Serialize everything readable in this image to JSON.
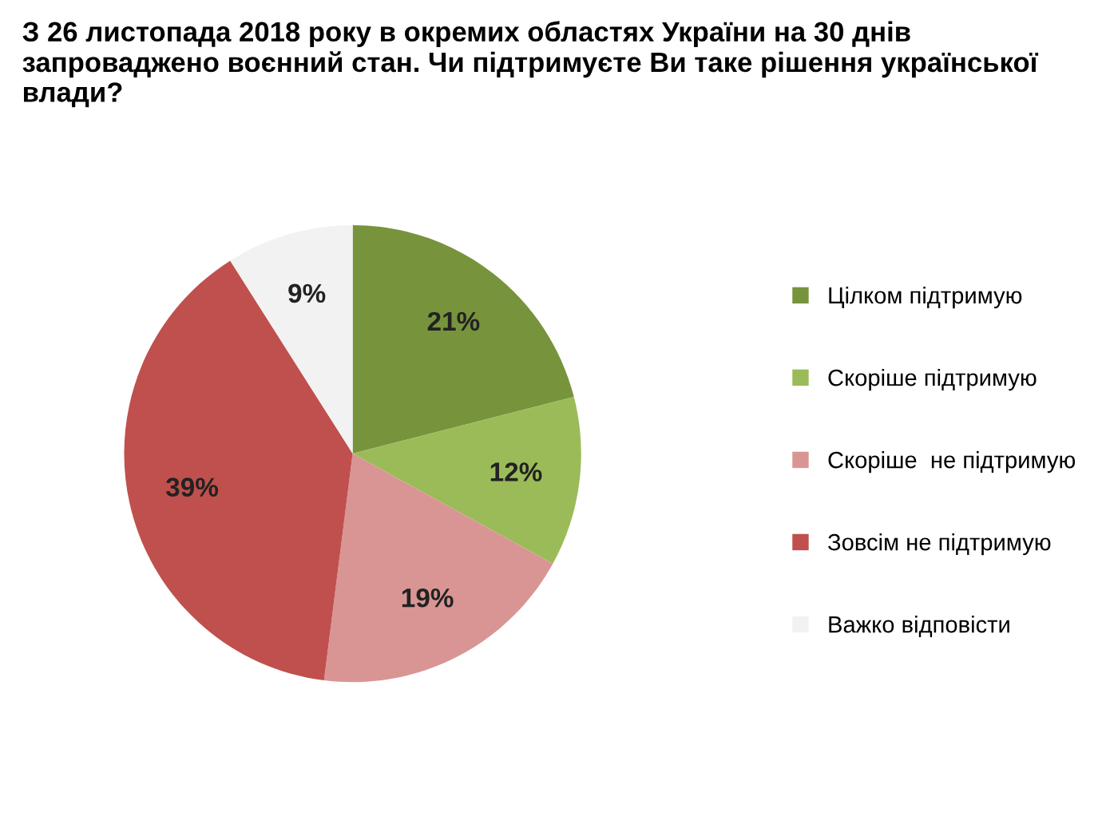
{
  "chart_data": {
    "type": "pie",
    "title": "З 26 листопада 2018 року в окремих областях України на 30 днів запроваджено воєнний стан. Чи підтримуєте Ви таке рішення української влади?",
    "categories": [
      "Цілком підтримую",
      "Скоріше підтримую",
      "Скоріше  не підтримую",
      "Зовсім не підтримую",
      "Важко відповісти"
    ],
    "values": [
      21,
      12,
      19,
      39,
      9
    ],
    "value_labels": [
      "21%",
      "12%",
      "19%",
      "39%",
      "9%"
    ],
    "colors": [
      "#77933c",
      "#9bbb59",
      "#d99594",
      "#c0504d",
      "#f2f2f2"
    ],
    "legend": "right"
  }
}
